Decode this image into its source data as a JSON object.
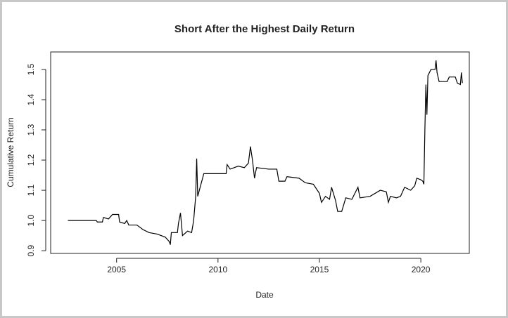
{
  "chart_data": {
    "type": "line",
    "title": "Short After the Highest Daily Return",
    "x_label": "Date",
    "y_label": "Cumulative Return",
    "x": [
      2002.6,
      2004.0,
      2004.05,
      2004.3,
      2004.35,
      2004.6,
      2004.8,
      2005.1,
      2005.15,
      2005.4,
      2005.5,
      2005.6,
      2006.0,
      2006.3,
      2006.6,
      2007.0,
      2007.4,
      2007.6,
      2007.65,
      2007.7,
      2008.0,
      2008.05,
      2008.15,
      2008.25,
      2008.5,
      2008.7,
      2008.8,
      2008.9,
      2008.95,
      2009.0,
      2009.2,
      2009.3,
      2010.0,
      2010.4,
      2010.45,
      2010.6,
      2011.0,
      2011.3,
      2011.5,
      2011.6,
      2011.7,
      2011.8,
      2011.9,
      2012.5,
      2012.9,
      2013.0,
      2013.3,
      2013.4,
      2014.0,
      2014.3,
      2014.7,
      2015.0,
      2015.1,
      2015.3,
      2015.5,
      2015.6,
      2015.8,
      2015.9,
      2016.1,
      2016.3,
      2016.6,
      2016.9,
      2017.0,
      2017.5,
      2018.0,
      2018.3,
      2018.4,
      2018.5,
      2018.8,
      2019.0,
      2019.2,
      2019.5,
      2019.7,
      2019.8,
      2020.0,
      2020.1,
      2020.15,
      2020.2,
      2020.25,
      2020.3,
      2020.35,
      2020.5,
      2020.7,
      2020.75,
      2020.8,
      2020.9,
      2021.3,
      2021.4,
      2021.7,
      2021.8,
      2021.95,
      2022.0,
      2022.05
    ],
    "values": [
      1.0,
      1.0,
      0.995,
      0.995,
      1.01,
      1.005,
      1.02,
      1.02,
      0.995,
      0.99,
      1.0,
      0.985,
      0.985,
      0.97,
      0.96,
      0.955,
      0.945,
      0.93,
      0.92,
      0.96,
      0.96,
      0.99,
      1.025,
      0.95,
      0.965,
      0.96,
      1.0,
      1.08,
      1.205,
      1.08,
      1.13,
      1.155,
      1.155,
      1.155,
      1.185,
      1.17,
      1.18,
      1.175,
      1.19,
      1.245,
      1.2,
      1.14,
      1.175,
      1.17,
      1.17,
      1.13,
      1.13,
      1.145,
      1.14,
      1.125,
      1.12,
      1.09,
      1.06,
      1.08,
      1.07,
      1.11,
      1.065,
      1.03,
      1.03,
      1.075,
      1.07,
      1.11,
      1.075,
      1.08,
      1.1,
      1.095,
      1.06,
      1.08,
      1.075,
      1.08,
      1.11,
      1.1,
      1.115,
      1.14,
      1.135,
      1.13,
      1.12,
      1.3,
      1.45,
      1.35,
      1.48,
      1.5,
      1.5,
      1.53,
      1.49,
      1.46,
      1.46,
      1.475,
      1.475,
      1.455,
      1.45,
      1.49,
      1.455
    ],
    "color": "#000000",
    "xlim": [
      2001.75,
      2022.39
    ],
    "xticks": [
      2005,
      2010,
      2015,
      2020
    ],
    "ylim": [
      0.891,
      1.558
    ],
    "yticks": [
      0.9,
      {
        "value": 1,
        "label": "1.0"
      },
      1.1,
      1.2,
      1.3,
      1.4,
      1.5
    ]
  }
}
